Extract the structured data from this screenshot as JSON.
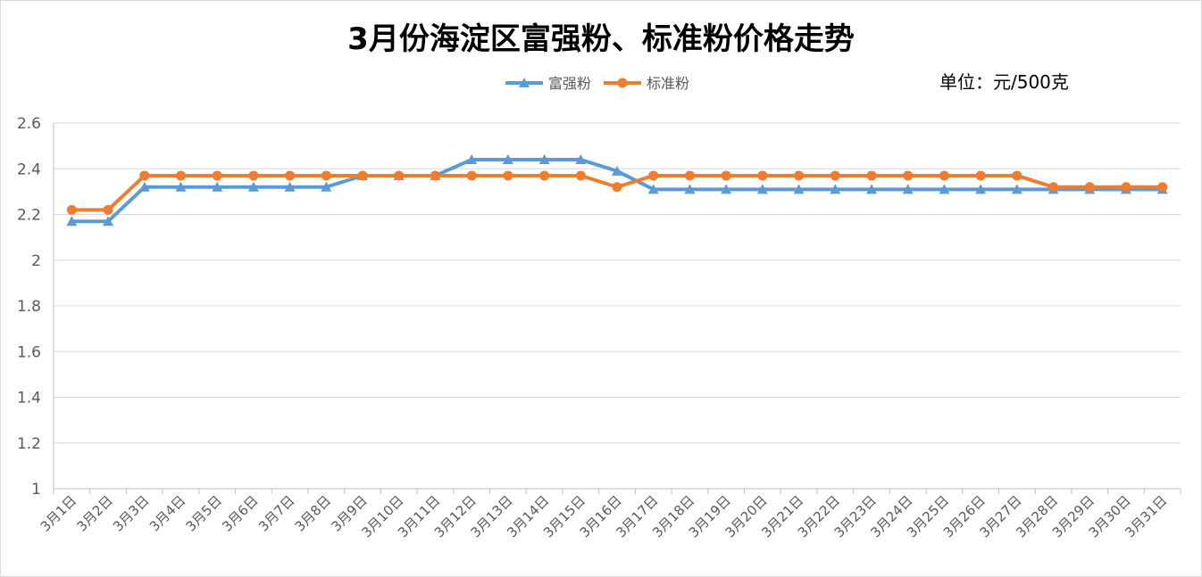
{
  "chart_data": {
    "type": "line",
    "title": "3月份海淀区富强粉、标准粉价格走势",
    "unit_label": "单位：元/500克",
    "xlabel": "",
    "ylabel": "",
    "ylim": [
      1,
      2.6
    ],
    "yticks": [
      1,
      1.2,
      1.4,
      1.6,
      1.8,
      2,
      2.2,
      2.4,
      2.6
    ],
    "grid": true,
    "legend_position": "top-center",
    "categories": [
      "3月1日",
      "3月2日",
      "3月3日",
      "3月4日",
      "3月5日",
      "3月6日",
      "3月7日",
      "3月8日",
      "3月9日",
      "3月10日",
      "3月11日",
      "3月12日",
      "3月13日",
      "3月14日",
      "3月15日",
      "3月16日",
      "3月17日",
      "3月18日",
      "3月19日",
      "3月20日",
      "3月21日",
      "3月22日",
      "3月23日",
      "3月24日",
      "3月25日",
      "3月26日",
      "3月27日",
      "3月28日",
      "3月29日",
      "3月30日",
      "3月31日"
    ],
    "series": [
      {
        "name": "富强粉",
        "color": "#5b9bd5",
        "marker": "triangle",
        "values": [
          2.17,
          2.17,
          2.32,
          2.32,
          2.32,
          2.32,
          2.32,
          2.32,
          2.37,
          2.37,
          2.37,
          2.44,
          2.44,
          2.44,
          2.44,
          2.39,
          2.31,
          2.31,
          2.31,
          2.31,
          2.31,
          2.31,
          2.31,
          2.31,
          2.31,
          2.31,
          2.31,
          2.31,
          2.31,
          2.31,
          2.31
        ]
      },
      {
        "name": "标准粉",
        "color": "#ed7d31",
        "marker": "circle",
        "values": [
          2.22,
          2.22,
          2.37,
          2.37,
          2.37,
          2.37,
          2.37,
          2.37,
          2.37,
          2.37,
          2.37,
          2.37,
          2.37,
          2.37,
          2.37,
          2.32,
          2.37,
          2.37,
          2.37,
          2.37,
          2.37,
          2.37,
          2.37,
          2.37,
          2.37,
          2.37,
          2.37,
          2.32,
          2.32,
          2.32,
          2.32
        ]
      }
    ]
  }
}
